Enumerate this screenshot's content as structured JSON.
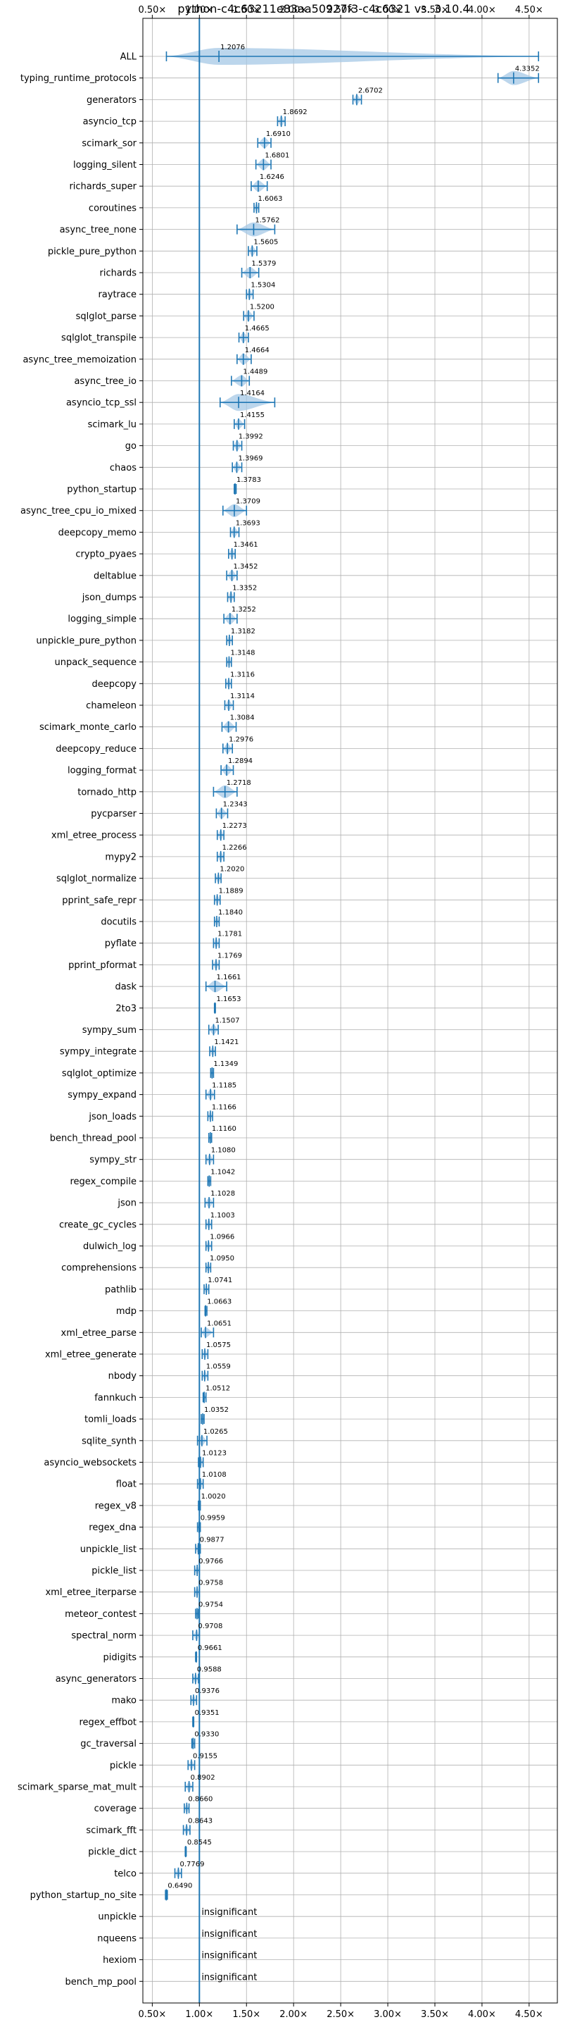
{
  "chart_data": {
    "type": "violin",
    "title": "python-c4c63211e83aa50927f3-c4c6321 vs. 3.10.4",
    "xlim": [
      0.4,
      4.8
    ],
    "xticks": [
      0.5,
      1.0,
      1.5,
      2.0,
      2.5,
      3.0,
      3.5,
      4.0,
      4.5
    ],
    "xtick_labels": [
      "0.50×",
      "1.00×",
      "1.50×",
      "2.00×",
      "2.50×",
      "3.00×",
      "3.50×",
      "4.00×",
      "4.50×"
    ],
    "reference_line": 1.0,
    "grid": true,
    "colors": {
      "violin": "#a6c8e6",
      "line": "#1f77b4",
      "ref": "#1f77b4"
    },
    "insignificant_label": "insignificant",
    "benchmarks": [
      {
        "name": "ALL",
        "mean": 1.2076,
        "min": 0.65,
        "max": 4.6,
        "spread": 0.2
      },
      {
        "name": "typing_runtime_protocols",
        "mean": 4.3352,
        "min": 4.17,
        "max": 4.6,
        "spread": 0.1
      },
      {
        "name": "generators",
        "mean": 2.6702,
        "min": 2.63,
        "max": 2.72,
        "spread": 0.03
      },
      {
        "name": "asyncio_tcp",
        "mean": 1.8692,
        "min": 1.83,
        "max": 1.91,
        "spread": 0.03
      },
      {
        "name": "scimark_sor",
        "mean": 1.691,
        "min": 1.62,
        "max": 1.76,
        "spread": 0.04
      },
      {
        "name": "logging_silent",
        "mean": 1.6801,
        "min": 1.6,
        "max": 1.76,
        "spread": 0.05
      },
      {
        "name": "richards_super",
        "mean": 1.6246,
        "min": 1.55,
        "max": 1.72,
        "spread": 0.05
      },
      {
        "name": "coroutines",
        "mean": 1.6063,
        "min": 1.58,
        "max": 1.63,
        "spread": 0.02
      },
      {
        "name": "async_tree_none",
        "mean": 1.5762,
        "min": 1.4,
        "max": 1.8,
        "spread": 0.1
      },
      {
        "name": "pickle_pure_python",
        "mean": 1.5605,
        "min": 1.52,
        "max": 1.61,
        "spread": 0.03
      },
      {
        "name": "richards",
        "mean": 1.5379,
        "min": 1.45,
        "max": 1.63,
        "spread": 0.05
      },
      {
        "name": "raytrace",
        "mean": 1.5304,
        "min": 1.5,
        "max": 1.57,
        "spread": 0.03
      },
      {
        "name": "sqlglot_parse",
        "mean": 1.52,
        "min": 1.47,
        "max": 1.58,
        "spread": 0.03
      },
      {
        "name": "sqlglot_transpile",
        "mean": 1.4665,
        "min": 1.42,
        "max": 1.52,
        "spread": 0.03
      },
      {
        "name": "async_tree_memoization",
        "mean": 1.4664,
        "min": 1.4,
        "max": 1.55,
        "spread": 0.05
      },
      {
        "name": "async_tree_io",
        "mean": 1.4489,
        "min": 1.34,
        "max": 1.53,
        "spread": 0.05
      },
      {
        "name": "asyncio_tcp_ssl",
        "mean": 1.4164,
        "min": 1.22,
        "max": 1.8,
        "spread": 0.15
      },
      {
        "name": "scimark_lu",
        "mean": 1.4155,
        "min": 1.37,
        "max": 1.48,
        "spread": 0.03
      },
      {
        "name": "go",
        "mean": 1.3992,
        "min": 1.36,
        "max": 1.45,
        "spread": 0.03
      },
      {
        "name": "chaos",
        "mean": 1.3969,
        "min": 1.35,
        "max": 1.45,
        "spread": 0.03
      },
      {
        "name": "python_startup",
        "mean": 1.3783,
        "min": 1.37,
        "max": 1.39,
        "spread": 0.01
      },
      {
        "name": "async_tree_cpu_io_mixed",
        "mean": 1.3709,
        "min": 1.25,
        "max": 1.5,
        "spread": 0.08
      },
      {
        "name": "deepcopy_memo",
        "mean": 1.3693,
        "min": 1.33,
        "max": 1.42,
        "spread": 0.03
      },
      {
        "name": "crypto_pyaes",
        "mean": 1.3461,
        "min": 1.31,
        "max": 1.38,
        "spread": 0.03
      },
      {
        "name": "deltablue",
        "mean": 1.3452,
        "min": 1.29,
        "max": 1.4,
        "spread": 0.04
      },
      {
        "name": "json_dumps",
        "mean": 1.3352,
        "min": 1.3,
        "max": 1.37,
        "spread": 0.03
      },
      {
        "name": "logging_simple",
        "mean": 1.3252,
        "min": 1.26,
        "max": 1.4,
        "spread": 0.05
      },
      {
        "name": "unpickle_pure_python",
        "mean": 1.3182,
        "min": 1.29,
        "max": 1.35,
        "spread": 0.02
      },
      {
        "name": "unpack_sequence",
        "mean": 1.3148,
        "min": 1.29,
        "max": 1.34,
        "spread": 0.02
      },
      {
        "name": "deepcopy",
        "mean": 1.3116,
        "min": 1.28,
        "max": 1.34,
        "spread": 0.02
      },
      {
        "name": "chameleon",
        "mean": 1.3114,
        "min": 1.27,
        "max": 1.36,
        "spread": 0.03
      },
      {
        "name": "scimark_monte_carlo",
        "mean": 1.3084,
        "min": 1.24,
        "max": 1.39,
        "spread": 0.05
      },
      {
        "name": "deepcopy_reduce",
        "mean": 1.2976,
        "min": 1.25,
        "max": 1.35,
        "spread": 0.03
      },
      {
        "name": "logging_format",
        "mean": 1.2894,
        "min": 1.23,
        "max": 1.36,
        "spread": 0.04
      },
      {
        "name": "tornado_http",
        "mean": 1.2718,
        "min": 1.15,
        "max": 1.4,
        "spread": 0.08
      },
      {
        "name": "pycparser",
        "mean": 1.2343,
        "min": 1.18,
        "max": 1.3,
        "spread": 0.04
      },
      {
        "name": "xml_etree_process",
        "mean": 1.2273,
        "min": 1.19,
        "max": 1.26,
        "spread": 0.03
      },
      {
        "name": "mypy2",
        "mean": 1.2266,
        "min": 1.19,
        "max": 1.26,
        "spread": 0.03
      },
      {
        "name": "sqlglot_normalize",
        "mean": 1.202,
        "min": 1.17,
        "max": 1.23,
        "spread": 0.02
      },
      {
        "name": "pprint_safe_repr",
        "mean": 1.1889,
        "min": 1.16,
        "max": 1.22,
        "spread": 0.02
      },
      {
        "name": "docutils",
        "mean": 1.184,
        "min": 1.16,
        "max": 1.21,
        "spread": 0.02
      },
      {
        "name": "pyflate",
        "mean": 1.1781,
        "min": 1.15,
        "max": 1.21,
        "spread": 0.02
      },
      {
        "name": "pprint_pformat",
        "mean": 1.1769,
        "min": 1.14,
        "max": 1.21,
        "spread": 0.02
      },
      {
        "name": "dask",
        "mean": 1.1661,
        "min": 1.07,
        "max": 1.29,
        "spread": 0.06
      },
      {
        "name": "2to3",
        "mean": 1.1653,
        "min": 1.16,
        "max": 1.17,
        "spread": 0.01
      },
      {
        "name": "sympy_sum",
        "mean": 1.1507,
        "min": 1.1,
        "max": 1.2,
        "spread": 0.03
      },
      {
        "name": "sympy_integrate",
        "mean": 1.1421,
        "min": 1.11,
        "max": 1.17,
        "spread": 0.02
      },
      {
        "name": "sqlglot_optimize",
        "mean": 1.1349,
        "min": 1.12,
        "max": 1.15,
        "spread": 0.01
      },
      {
        "name": "sympy_expand",
        "mean": 1.1185,
        "min": 1.07,
        "max": 1.16,
        "spread": 0.03
      },
      {
        "name": "json_loads",
        "mean": 1.1166,
        "min": 1.09,
        "max": 1.14,
        "spread": 0.02
      },
      {
        "name": "bench_thread_pool",
        "mean": 1.116,
        "min": 1.1,
        "max": 1.13,
        "spread": 0.01
      },
      {
        "name": "sympy_str",
        "mean": 1.108,
        "min": 1.07,
        "max": 1.15,
        "spread": 0.03
      },
      {
        "name": "regex_compile",
        "mean": 1.1042,
        "min": 1.09,
        "max": 1.12,
        "spread": 0.01
      },
      {
        "name": "json",
        "mean": 1.1028,
        "min": 1.06,
        "max": 1.15,
        "spread": 0.03
      },
      {
        "name": "create_gc_cycles",
        "mean": 1.1003,
        "min": 1.07,
        "max": 1.13,
        "spread": 0.02
      },
      {
        "name": "dulwich_log",
        "mean": 1.0966,
        "min": 1.07,
        "max": 1.13,
        "spread": 0.02
      },
      {
        "name": "comprehensions",
        "mean": 1.095,
        "min": 1.07,
        "max": 1.12,
        "spread": 0.02
      },
      {
        "name": "pathlib",
        "mean": 1.0741,
        "min": 1.05,
        "max": 1.1,
        "spread": 0.02
      },
      {
        "name": "mdp",
        "mean": 1.0663,
        "min": 1.06,
        "max": 1.08,
        "spread": 0.01
      },
      {
        "name": "xml_etree_parse",
        "mean": 1.0651,
        "min": 1.02,
        "max": 1.15,
        "spread": 0.03
      },
      {
        "name": "xml_etree_generate",
        "mean": 1.0575,
        "min": 1.03,
        "max": 1.09,
        "spread": 0.02
      },
      {
        "name": "nbody",
        "mean": 1.0559,
        "min": 1.03,
        "max": 1.09,
        "spread": 0.02
      },
      {
        "name": "fannkuch",
        "mean": 1.0512,
        "min": 1.04,
        "max": 1.07,
        "spread": 0.01
      },
      {
        "name": "tomli_loads",
        "mean": 1.0352,
        "min": 1.02,
        "max": 1.05,
        "spread": 0.01
      },
      {
        "name": "sqlite_synth",
        "mean": 1.0265,
        "min": 0.98,
        "max": 1.08,
        "spread": 0.03
      },
      {
        "name": "asyncio_websockets",
        "mean": 1.0123,
        "min": 0.99,
        "max": 1.04,
        "spread": 0.02
      },
      {
        "name": "float",
        "mean": 1.0108,
        "min": 0.98,
        "max": 1.04,
        "spread": 0.02
      },
      {
        "name": "regex_v8",
        "mean": 1.002,
        "min": 0.99,
        "max": 1.01,
        "spread": 0.01
      },
      {
        "name": "regex_dna",
        "mean": 0.9959,
        "min": 0.98,
        "max": 1.01,
        "spread": 0.01
      },
      {
        "name": "unpickle_list",
        "mean": 0.9877,
        "min": 0.96,
        "max": 1.01,
        "spread": 0.02
      },
      {
        "name": "pickle_list",
        "mean": 0.9766,
        "min": 0.95,
        "max": 1.0,
        "spread": 0.02
      },
      {
        "name": "xml_etree_iterparse",
        "mean": 0.9758,
        "min": 0.95,
        "max": 1.0,
        "spread": 0.02
      },
      {
        "name": "meteor_contest",
        "mean": 0.9754,
        "min": 0.96,
        "max": 0.99,
        "spread": 0.01
      },
      {
        "name": "spectral_norm",
        "mean": 0.9708,
        "min": 0.93,
        "max": 1.0,
        "spread": 0.02
      },
      {
        "name": "pidigits",
        "mean": 0.9661,
        "min": 0.96,
        "max": 0.97,
        "spread": 0.01
      },
      {
        "name": "async_generators",
        "mean": 0.9588,
        "min": 0.93,
        "max": 0.99,
        "spread": 0.02
      },
      {
        "name": "mako",
        "mean": 0.9376,
        "min": 0.91,
        "max": 0.97,
        "spread": 0.02
      },
      {
        "name": "regex_effbot",
        "mean": 0.9351,
        "min": 0.93,
        "max": 0.94,
        "spread": 0.01
      },
      {
        "name": "gc_traversal",
        "mean": 0.933,
        "min": 0.92,
        "max": 0.95,
        "spread": 0.01
      },
      {
        "name": "pickle",
        "mean": 0.9155,
        "min": 0.88,
        "max": 0.95,
        "spread": 0.02
      },
      {
        "name": "scimark_sparse_mat_mult",
        "mean": 0.8902,
        "min": 0.85,
        "max": 0.93,
        "spread": 0.02
      },
      {
        "name": "coverage",
        "mean": 0.866,
        "min": 0.84,
        "max": 0.89,
        "spread": 0.02
      },
      {
        "name": "scimark_fft",
        "mean": 0.8643,
        "min": 0.83,
        "max": 0.9,
        "spread": 0.02
      },
      {
        "name": "pickle_dict",
        "mean": 0.8545,
        "min": 0.85,
        "max": 0.86,
        "spread": 0.01
      },
      {
        "name": "telco",
        "mean": 0.7769,
        "min": 0.74,
        "max": 0.81,
        "spread": 0.02
      },
      {
        "name": "python_startup_no_site",
        "mean": 0.649,
        "min": 0.64,
        "max": 0.66,
        "spread": 0.005
      },
      {
        "name": "unpickle",
        "insignificant": true
      },
      {
        "name": "nqueens",
        "insignificant": true
      },
      {
        "name": "hexiom",
        "insignificant": true
      },
      {
        "name": "bench_mp_pool",
        "insignificant": true
      }
    ]
  }
}
